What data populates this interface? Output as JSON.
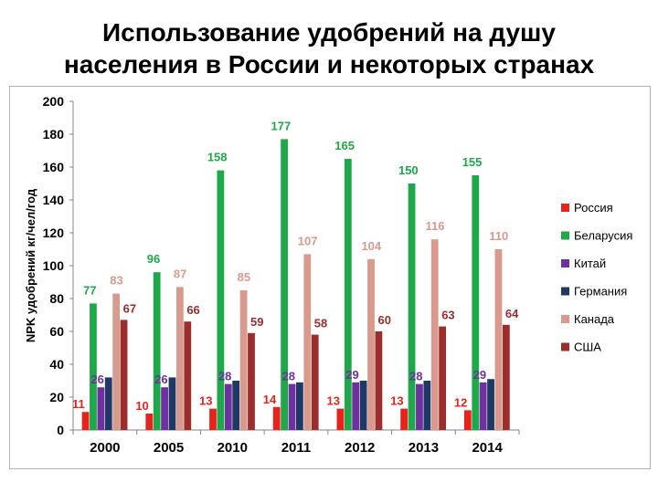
{
  "page": {
    "title_line1": "Использование удобрений на душу",
    "title_line2": "населения в России и некоторых странах"
  },
  "chart_data": {
    "type": "bar",
    "title": "",
    "ylabel": "NPK  удобрений кг/чел/год",
    "xlabel": "",
    "ylim": [
      0,
      200
    ],
    "yticks": [
      0,
      20,
      40,
      60,
      80,
      100,
      120,
      140,
      160,
      180,
      200
    ],
    "grid": false,
    "legend_position": "right",
    "categories": [
      "2000",
      "2005",
      "2010",
      "2011",
      "2012",
      "2013",
      "2014"
    ],
    "series": [
      {
        "name": "Россия",
        "color": "#e8231c",
        "values": [
          11,
          10,
          13,
          14,
          13,
          13,
          12
        ],
        "labels": [
          "11",
          "10",
          "13",
          "14",
          "13",
          "13",
          "12"
        ]
      },
      {
        "name": "Беларусия",
        "color": "#1ea84a",
        "values": [
          77,
          96,
          158,
          177,
          165,
          150,
          155
        ],
        "labels": [
          "77",
          "96",
          "158",
          "177",
          "165",
          "150",
          "155"
        ]
      },
      {
        "name": "Китай",
        "color": "#7030a0",
        "values": [
          26,
          26,
          28,
          28,
          29,
          28,
          29
        ],
        "labels": [
          "26",
          "26",
          "28",
          "28",
          "29",
          "28",
          "29"
        ]
      },
      {
        "name": "Германия",
        "color": "#1f3864",
        "values": [
          32,
          32,
          30,
          29,
          30,
          30,
          31
        ],
        "labels": [
          "",
          "",
          "",
          "",
          "",
          "",
          ""
        ]
      },
      {
        "name": "Канада",
        "color": "#d99a8e",
        "values": [
          83,
          87,
          85,
          107,
          104,
          116,
          110
        ],
        "labels": [
          "83",
          "87",
          "85",
          "107",
          "104",
          "116",
          "110"
        ]
      },
      {
        "name": "США",
        "color": "#9b2d2d",
        "values": [
          67,
          66,
          59,
          58,
          60,
          63,
          64
        ],
        "labels": [
          "67",
          "66",
          "59",
          "58",
          "60",
          "63",
          "64"
        ]
      }
    ]
  }
}
